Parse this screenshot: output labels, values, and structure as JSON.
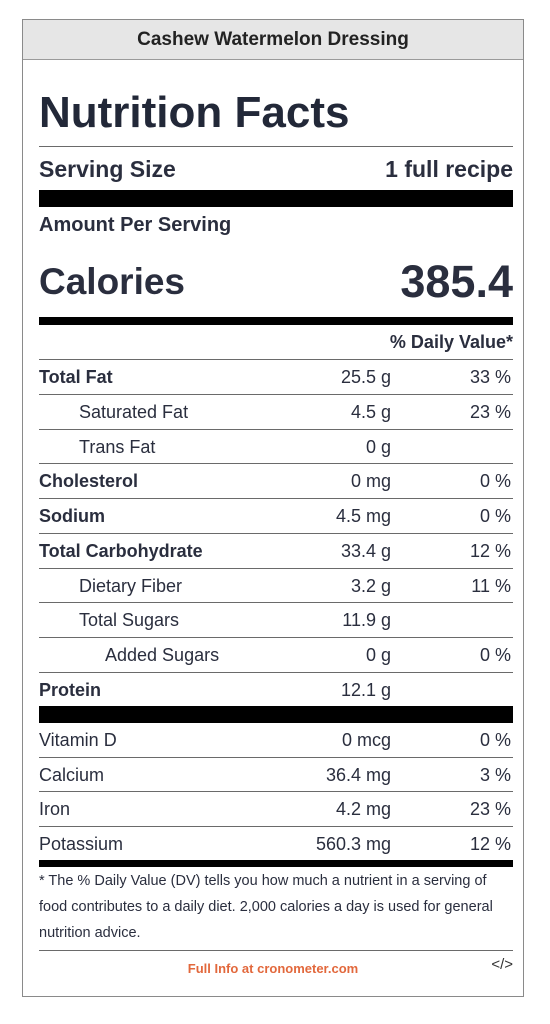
{
  "recipe_title": "Cashew Watermelon Dressing",
  "heading": "Nutrition Facts",
  "serving": {
    "label": "Serving Size",
    "value": "1 full recipe"
  },
  "amount_per_serving": "Amount Per Serving",
  "calories": {
    "label": "Calories",
    "value": "385.4"
  },
  "daily_value_header": "% Daily Value*",
  "nutrients": [
    {
      "name": "Total Fat",
      "amount": "25.5 g",
      "dv": "33 %",
      "bold": true,
      "indent": 0
    },
    {
      "name": "Saturated Fat",
      "amount": "4.5 g",
      "dv": "23 %",
      "bold": false,
      "indent": 1
    },
    {
      "name": "Trans Fat",
      "amount": "0 g",
      "dv": "",
      "bold": false,
      "indent": 1
    },
    {
      "name": "Cholesterol",
      "amount": "0 mg",
      "dv": "0 %",
      "bold": true,
      "indent": 0
    },
    {
      "name": "Sodium",
      "amount": "4.5 mg",
      "dv": "0 %",
      "bold": true,
      "indent": 0
    },
    {
      "name": "Total Carbohydrate",
      "amount": "33.4 g",
      "dv": "12 %",
      "bold": true,
      "indent": 0
    },
    {
      "name": "Dietary Fiber",
      "amount": "3.2 g",
      "dv": "11 %",
      "bold": false,
      "indent": 1
    },
    {
      "name": "Total Sugars",
      "amount": "11.9 g",
      "dv": "",
      "bold": false,
      "indent": 1
    },
    {
      "name": "Added Sugars",
      "amount": "0 g",
      "dv": "0 %",
      "bold": false,
      "indent": 2
    },
    {
      "name": "Protein",
      "amount": "12.1 g",
      "dv": "",
      "bold": true,
      "indent": 0
    }
  ],
  "vitamins": [
    {
      "name": "Vitamin D",
      "amount": "0 mcg",
      "dv": "0 %"
    },
    {
      "name": "Calcium",
      "amount": "36.4 mg",
      "dv": "3 %"
    },
    {
      "name": "Iron",
      "amount": "4.2 mg",
      "dv": "23 %"
    },
    {
      "name": "Potassium",
      "amount": "560.3 mg",
      "dv": "12 %"
    }
  ],
  "footnote": "* The % Daily Value (DV) tells you how much a nutrient in a serving of food contributes to a daily diet. 2,000 calories a day is used for general nutrition advice.",
  "full_info_link": "Full Info at cronometer.com",
  "embed_label": "</>",
  "colors": {
    "link": "#e2683c",
    "text": "#2a2e3e",
    "title_bar": "#e6e6e6"
  }
}
